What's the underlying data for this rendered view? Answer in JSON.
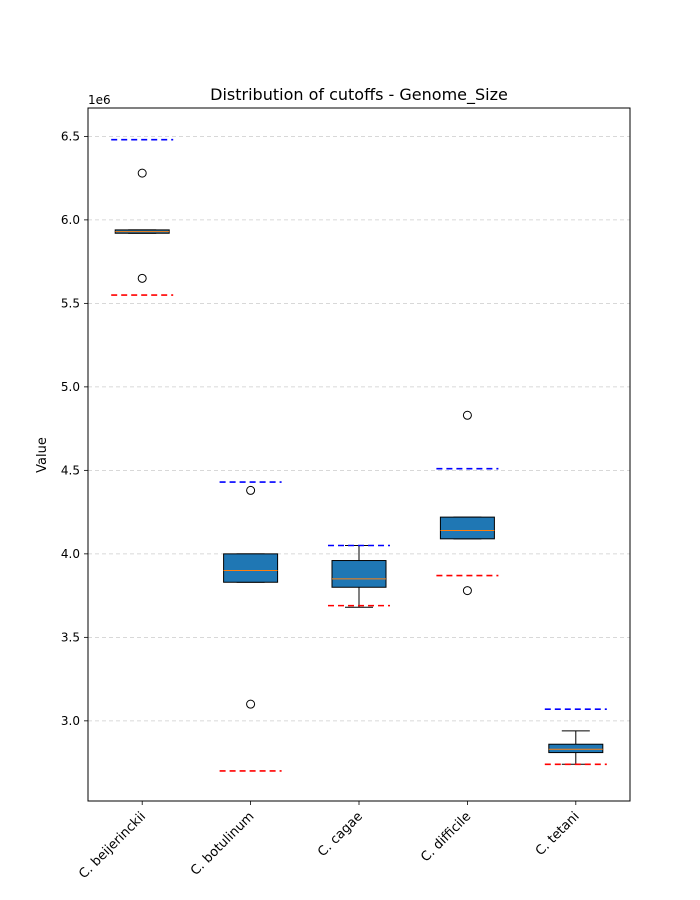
{
  "chart_data": {
    "type": "boxplot",
    "title": "Distribution of cutoffs - Genome_Size",
    "ylabel": "Value",
    "xlabel": "",
    "y_offset_label": "1e6",
    "y_multiplier": 1000000,
    "ylim": [
      2.52,
      6.67
    ],
    "yticks": [
      3.0,
      3.5,
      4.0,
      4.5,
      5.0,
      5.5,
      6.0,
      6.5
    ],
    "ytick_labels": [
      "3.0",
      "3.5",
      "4.0",
      "4.5",
      "5.0",
      "5.5",
      "6.0",
      "6.5"
    ],
    "grid": "y, dashed",
    "colors": {
      "box": "#1f77b4",
      "median": "#ff7f0e",
      "upper_line": "#0000ff",
      "lower_line": "#ff0000",
      "grid": "#cccccc"
    },
    "categories": [
      "C. beijerinckii",
      "C. botulinum",
      "C. cagae",
      "C. difficile",
      "C. tetani"
    ],
    "boxes": [
      {
        "whisker_low": 5.92,
        "q1": 5.92,
        "median": 5.93,
        "q3": 5.94,
        "whisker_high": 5.94,
        "outliers": [
          6.28,
          5.65
        ],
        "upper_cutoff": 6.48,
        "lower_cutoff": 5.55
      },
      {
        "whisker_low": 3.83,
        "q1": 3.83,
        "median": 3.9,
        "q3": 4.0,
        "whisker_high": 4.0,
        "outliers": [
          4.38,
          3.1
        ],
        "upper_cutoff": 4.43,
        "lower_cutoff": 2.7
      },
      {
        "whisker_low": 3.68,
        "q1": 3.8,
        "median": 3.85,
        "q3": 3.96,
        "whisker_high": 4.05,
        "outliers": [],
        "upper_cutoff": 4.05,
        "lower_cutoff": 3.69
      },
      {
        "whisker_low": 4.09,
        "q1": 4.09,
        "median": 4.14,
        "q3": 4.22,
        "whisker_high": 4.22,
        "outliers": [
          4.83,
          3.78
        ],
        "upper_cutoff": 4.51,
        "lower_cutoff": 3.87
      },
      {
        "whisker_low": 2.74,
        "q1": 2.81,
        "median": 2.83,
        "q3": 2.86,
        "whisker_high": 2.94,
        "outliers": [],
        "upper_cutoff": 3.07,
        "lower_cutoff": 2.74
      }
    ]
  }
}
